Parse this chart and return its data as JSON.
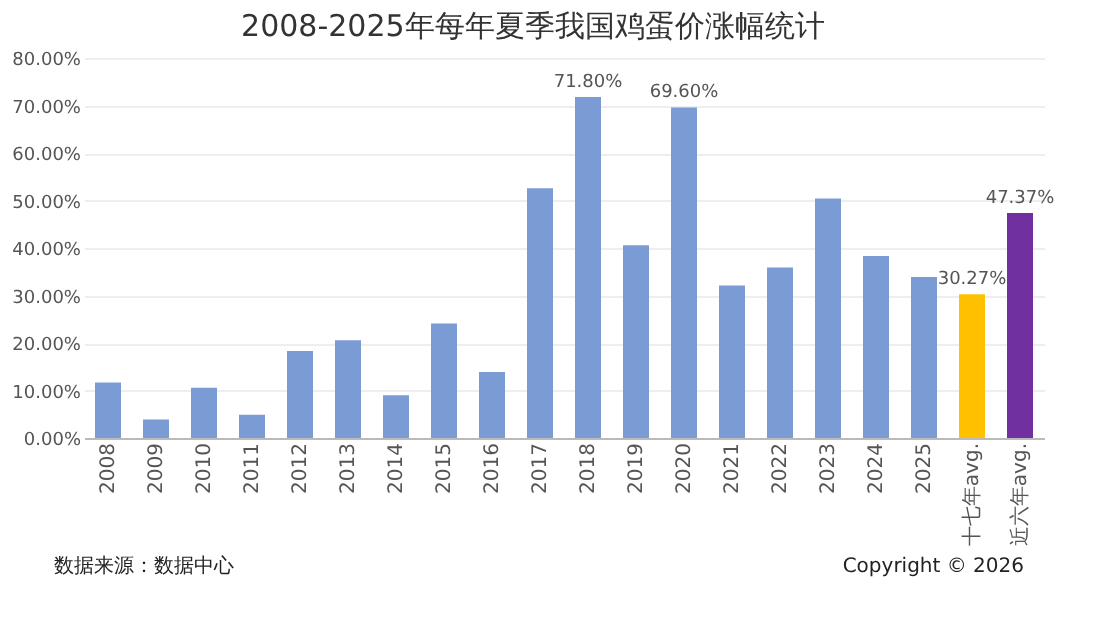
{
  "chart_data": {
    "type": "bar",
    "title": "2008-2025年每年夏季我国鸡蛋价涨幅统计",
    "categories": [
      "2008",
      "2009",
      "2010",
      "2011",
      "2012",
      "2013",
      "2014",
      "2015",
      "2016",
      "2017",
      "2018",
      "2019",
      "2020",
      "2021",
      "2022",
      "2023",
      "2024",
      "2025",
      "十七年avg.",
      "近六年avg."
    ],
    "values": [
      11.7,
      3.9,
      10.6,
      4.9,
      18.3,
      20.6,
      9.0,
      24.1,
      13.9,
      52.6,
      71.8,
      40.6,
      69.6,
      32.1,
      35.9,
      50.4,
      38.3,
      33.9,
      30.27,
      47.37
    ],
    "colors": [
      "#7b9bd5",
      "#7b9bd5",
      "#7b9bd5",
      "#7b9bd5",
      "#7b9bd5",
      "#7b9bd5",
      "#7b9bd5",
      "#7b9bd5",
      "#7b9bd5",
      "#7b9bd5",
      "#7b9bd5",
      "#7b9bd5",
      "#7b9bd5",
      "#7b9bd5",
      "#7b9bd5",
      "#7b9bd5",
      "#7b9bd5",
      "#7b9bd5",
      "#ffc000",
      "#7030a0"
    ],
    "value_labels": [
      null,
      null,
      null,
      null,
      null,
      null,
      null,
      null,
      null,
      null,
      "71.80%",
      null,
      "69.60%",
      null,
      null,
      null,
      null,
      null,
      "30.27%",
      "47.37%"
    ],
    "ylim": [
      0,
      80
    ],
    "yticks": [
      {
        "value": 0,
        "label": "0.00%"
      },
      {
        "value": 10,
        "label": "10.00%"
      },
      {
        "value": 20,
        "label": "20.00%"
      },
      {
        "value": 30,
        "label": "30.00%"
      },
      {
        "value": 40,
        "label": "40.00%"
      },
      {
        "value": 50,
        "label": "50.00%"
      },
      {
        "value": 60,
        "label": "60.00%"
      },
      {
        "value": 70,
        "label": "70.00%"
      },
      {
        "value": 80,
        "label": "80.00%"
      }
    ],
    "grid": "y",
    "legend": false,
    "annotations": [
      "数据来源：数据中心",
      "Copyright © 2026"
    ]
  }
}
